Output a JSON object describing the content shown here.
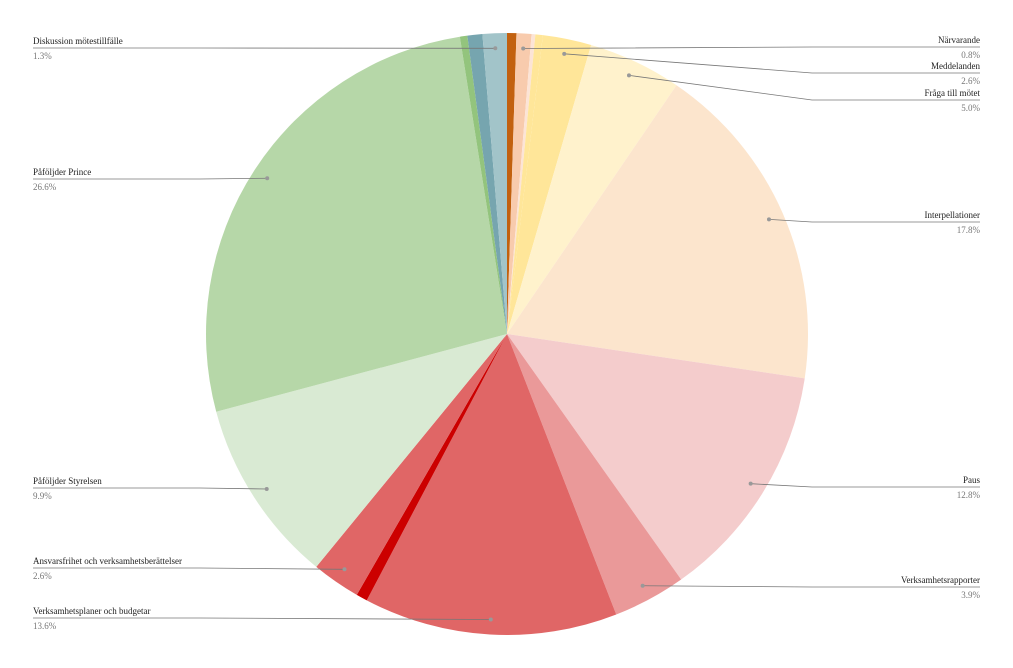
{
  "chart_data": {
    "type": "pie",
    "categories": [
      null,
      "Närvarande",
      null,
      null,
      "Meddelanden",
      "Fråga till mötet",
      "Interpellationer",
      "Paus",
      "Verksamhetsrapporter",
      "Verksamhetsplaner och budgetar",
      null,
      "Ansvarsfrihet och verksamhetsberättelser",
      "Påföljder Styrelsen",
      "Påföljder Prince",
      null,
      null,
      "Diskussion mötestillfälle"
    ],
    "values": [
      0.5,
      0.8,
      0.2,
      0.4,
      2.6,
      5.0,
      17.8,
      12.8,
      3.9,
      13.6,
      0.6,
      2.6,
      9.9,
      26.6,
      0.4,
      0.8,
      1.3
    ],
    "value_labels": [
      null,
      "0.8%",
      null,
      null,
      "2.6%",
      "5.0%",
      "17.8%",
      "12.8%",
      "3.9%",
      "13.6%",
      null,
      "2.6%",
      "9.9%",
      "26.6%",
      null,
      null,
      "1.3%"
    ],
    "colors": [
      "#c2610f",
      "#f8cbad",
      "#fce4d6",
      "#ffe699",
      "#ffe699",
      "#fff2cc",
      "#fce5cd",
      "#f4cccc",
      "#ea9999",
      "#e06666",
      "#cc0000",
      "#e06666",
      "#d9ead3",
      "#b6d7a8",
      "#93c47d",
      "#76a5af",
      "#a2c4c9"
    ]
  }
}
